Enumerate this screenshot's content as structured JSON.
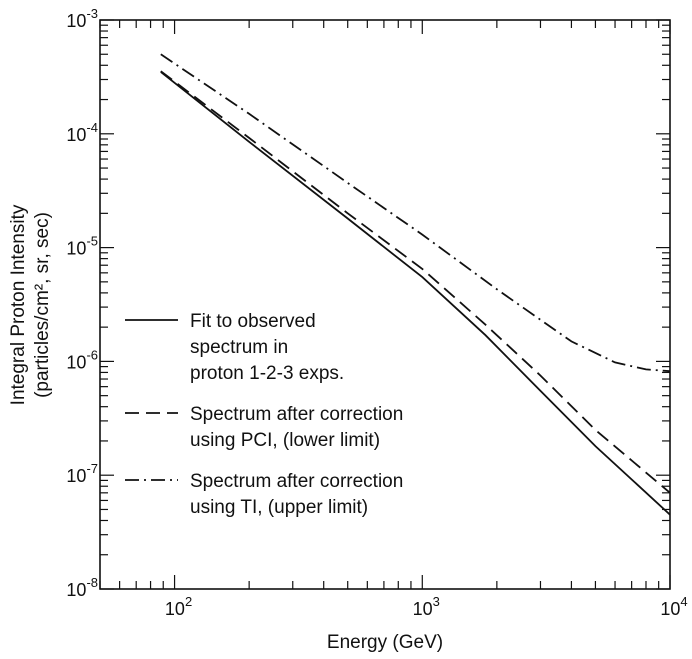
{
  "chart_data": {
    "type": "line",
    "title": "",
    "xlabel": "Energy (GeV)",
    "ylabel": "Integral Proton Intensity",
    "ylabel_units": "(particles/cm², sr, sec)",
    "xscale": "log",
    "yscale": "log",
    "xlim": [
      50,
      10000
    ],
    "ylim": [
      1e-08,
      0.001
    ],
    "grid": false,
    "legend_position": "left-center",
    "x_ticks": [
      {
        "base": "10",
        "exp": "2"
      },
      {
        "base": "10",
        "exp": "3"
      },
      {
        "base": "10",
        "exp": "4"
      }
    ],
    "y_ticks": [
      {
        "base": "10",
        "exp": "-8"
      },
      {
        "base": "10",
        "exp": "-7"
      },
      {
        "base": "10",
        "exp": "-6"
      },
      {
        "base": "10",
        "exp": "-5"
      },
      {
        "base": "10",
        "exp": "-4"
      },
      {
        "base": "10",
        "exp": "-3"
      }
    ],
    "series": [
      {
        "name": "Fit to observed spectrum in proton 1-2-3 exps.",
        "legend_lines": [
          "Fit to observed",
          "spectrum in",
          "proton 1-2-3 exps."
        ],
        "style": "solid",
        "x": [
          88,
          200,
          500,
          1000,
          1800,
          3000,
          5000,
          10000
        ],
        "y": [
          0.00035,
          8.5e-05,
          1.8e-05,
          5.5e-06,
          1.7e-06,
          5.5e-07,
          1.8e-07,
          4.5e-08
        ]
      },
      {
        "name": "Spectrum after correction using PCI, (lower limit)",
        "legend_lines": [
          "Spectrum after correction",
          "using PCI, (lower limit)"
        ],
        "style": "dashed",
        "x": [
          88,
          200,
          500,
          1000,
          1800,
          3000,
          5000,
          10000
        ],
        "y": [
          0.000355,
          9.2e-05,
          2e-05,
          6.5e-06,
          2.1e-06,
          7.5e-07,
          2.5e-07,
          7e-08
        ]
      },
      {
        "name": "Spectrum after correction using TI, (upper limit)",
        "legend_lines": [
          "Spectrum after correction",
          "using TI, (upper limit)"
        ],
        "style": "dashdot",
        "x": [
          88,
          200,
          500,
          1000,
          2000,
          4000,
          6000,
          8000,
          10000
        ],
        "y": [
          0.0005,
          0.00015,
          3.7e-05,
          1.3e-05,
          4.3e-06,
          1.5e-06,
          9.8e-07,
          8.5e-07,
          8.2e-07
        ]
      }
    ]
  }
}
